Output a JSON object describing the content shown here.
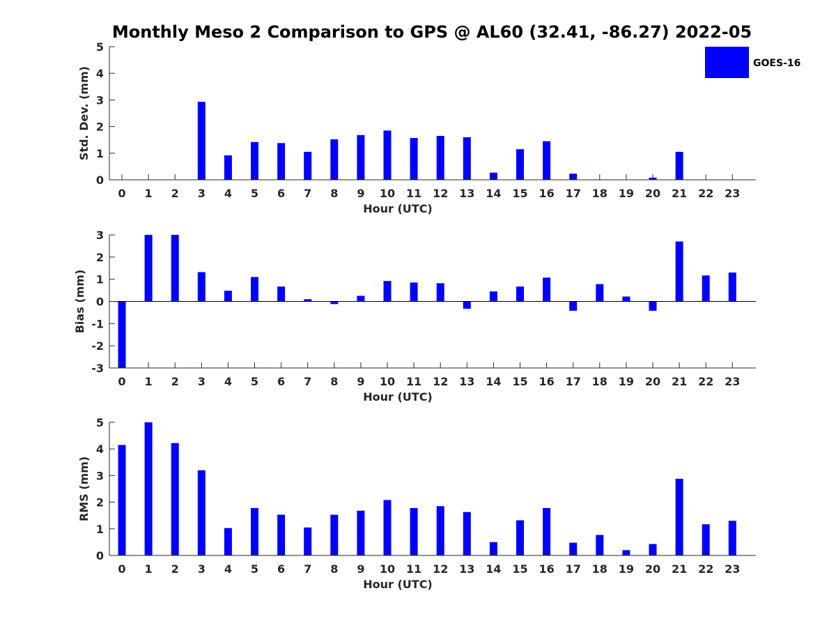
{
  "title": "Monthly Meso 2 Comparison to GPS @ AL60 (32.41, -86.27) 2022-05",
  "colors": {
    "bar": "#0000ff",
    "axis": "#262626"
  },
  "legend": {
    "label": "GOES-16",
    "placement": "top-right"
  },
  "chart_data": [
    {
      "type": "bar",
      "xlabel": "Hour (UTC)",
      "ylabel": "Std. Dev. (mm)",
      "ylim": [
        0,
        5
      ],
      "yticks": [
        0,
        1,
        2,
        3,
        4,
        5
      ],
      "categories": [
        "0",
        "1",
        "2",
        "3",
        "4",
        "5",
        "6",
        "7",
        "8",
        "9",
        "10",
        "11",
        "12",
        "13",
        "14",
        "15",
        "16",
        "17",
        "18",
        "19",
        "20",
        "21",
        "22",
        "23"
      ],
      "series": [
        {
          "name": "GOES-16",
          "values": [
            0,
            0,
            0,
            2.93,
            0.92,
            1.42,
            1.38,
            1.05,
            1.52,
            1.68,
            1.85,
            1.57,
            1.65,
            1.6,
            0.27,
            1.15,
            1.45,
            0.23,
            0,
            0,
            0.08,
            1.05,
            0,
            0
          ]
        }
      ]
    },
    {
      "type": "bar",
      "xlabel": "Hour (UTC)",
      "ylabel": "Bias (mm)",
      "ylim": [
        -3,
        3
      ],
      "yticks": [
        -3,
        -2,
        -1,
        0,
        1,
        2,
        3
      ],
      "categories": [
        "0",
        "1",
        "2",
        "3",
        "4",
        "5",
        "6",
        "7",
        "8",
        "9",
        "10",
        "11",
        "12",
        "13",
        "14",
        "15",
        "16",
        "17",
        "18",
        "19",
        "20",
        "21",
        "22",
        "23"
      ],
      "series": [
        {
          "name": "GOES-16",
          "values": [
            -3,
            3,
            3,
            1.32,
            0.48,
            1.1,
            0.67,
            0.1,
            -0.12,
            0.25,
            0.92,
            0.85,
            0.82,
            -0.33,
            0.45,
            0.67,
            1.07,
            -0.42,
            0.78,
            0.22,
            -0.42,
            2.7,
            1.17,
            1.3
          ]
        }
      ]
    },
    {
      "type": "bar",
      "xlabel": "Hour (UTC)",
      "ylabel": "RMS (mm)",
      "ylim": [
        0,
        5
      ],
      "yticks": [
        0,
        1,
        2,
        3,
        4,
        5
      ],
      "categories": [
        "0",
        "1",
        "2",
        "3",
        "4",
        "5",
        "6",
        "7",
        "8",
        "9",
        "10",
        "11",
        "12",
        "13",
        "14",
        "15",
        "16",
        "17",
        "18",
        "19",
        "20",
        "21",
        "22",
        "23"
      ],
      "series": [
        {
          "name": "GOES-16",
          "values": [
            4.15,
            5,
            4.22,
            3.2,
            1.03,
            1.78,
            1.53,
            1.05,
            1.53,
            1.68,
            2.08,
            1.78,
            1.85,
            1.63,
            0.5,
            1.32,
            1.78,
            0.48,
            0.77,
            0.2,
            0.43,
            2.88,
            1.17,
            1.3
          ]
        }
      ]
    }
  ]
}
